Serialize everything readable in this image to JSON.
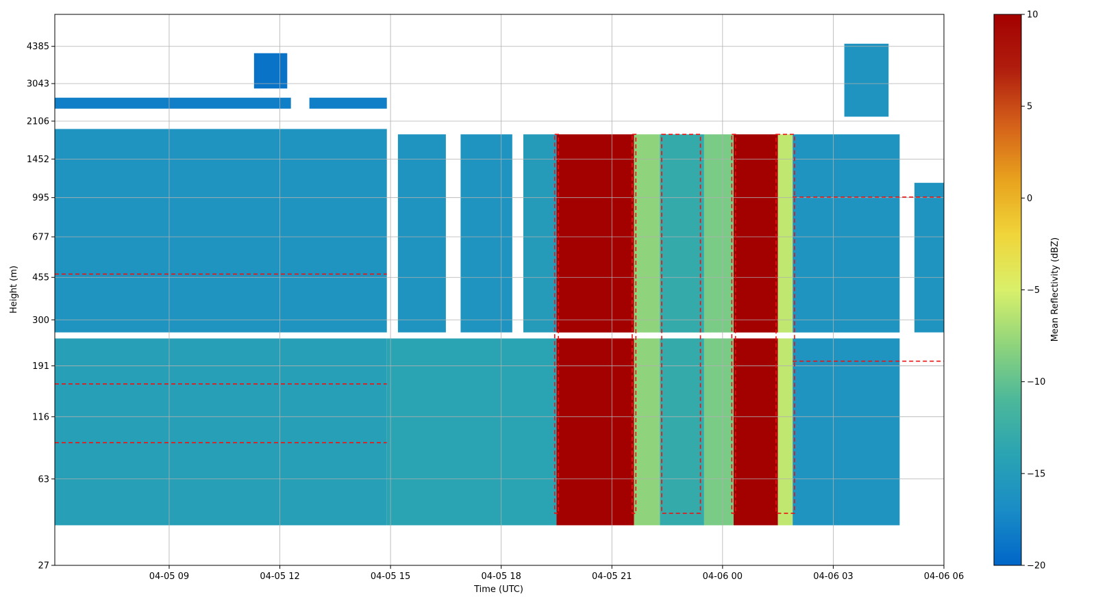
{
  "chart_data": {
    "type": "heatmap",
    "title": "",
    "xlabel": "Time (UTC)",
    "ylabel": "Height (m)",
    "x_tick_labels": [
      "04-05 09",
      "04-05 12",
      "04-05 15",
      "04-05 18",
      "04-05 21",
      "04-06 00",
      "04-06 03",
      "04-06 06"
    ],
    "x_tick_hours": [
      9,
      12,
      15,
      18,
      21,
      24,
      27,
      30
    ],
    "xlim_hours": [
      5.9,
      30
    ],
    "y_scale": "log",
    "y_tick_labels": [
      "27",
      "63",
      "116",
      "191",
      "300",
      "455",
      "677",
      "995",
      "1452",
      "2106",
      "3043",
      "4385"
    ],
    "y_tick_values": [
      27,
      63,
      116,
      191,
      300,
      455,
      677,
      995,
      1452,
      2106,
      3043,
      4385
    ],
    "ylim": [
      27,
      6000
    ],
    "colorbar": {
      "label": "Mean Reflectivity (dBZ)",
      "range": [
        -20,
        10
      ],
      "tick_labels": [
        "10",
        "5",
        "0",
        "−5",
        "−10",
        "−15",
        "−20"
      ],
      "tick_values": [
        10,
        5,
        0,
        -5,
        -10,
        -15,
        -20
      ],
      "colormap_stops": [
        "#0066c8",
        "#1a8cc6",
        "#2aa3b3",
        "#4cb89a",
        "#8fd47c",
        "#d9f06a",
        "#f0d53a",
        "#e8a21d",
        "#d4601a",
        "#b01e0e",
        "#a30000"
      ]
    },
    "grid": true,
    "contour_overlay": {
      "style": "dashed",
      "color": "#ee1111"
    },
    "gap_heights_m": [
      250,
      265
    ],
    "regions": [
      {
        "t0": 5.9,
        "t1": 14.9,
        "h0": 40,
        "h1": 250,
        "dbz": -14.5
      },
      {
        "t0": 5.9,
        "t1": 14.9,
        "h0": 265,
        "h1": 1950,
        "dbz": -16.0
      },
      {
        "t0": 5.9,
        "t1": 12.3,
        "h0": 2380,
        "h1": 2650,
        "dbz": -18.0
      },
      {
        "t0": 12.8,
        "t1": 14.9,
        "h0": 2380,
        "h1": 2650,
        "dbz": -18.0
      },
      {
        "t0": 11.3,
        "t1": 12.2,
        "h0": 2900,
        "h1": 4100,
        "dbz": -19.0
      },
      {
        "t0": 15.2,
        "t1": 16.5,
        "h0": 265,
        "h1": 1850,
        "dbz": -16.0
      },
      {
        "t0": 16.9,
        "t1": 18.3,
        "h0": 265,
        "h1": 1850,
        "dbz": -16.0
      },
      {
        "t0": 18.6,
        "t1": 19.5,
        "h0": 265,
        "h1": 1850,
        "dbz": -15.0
      },
      {
        "t0": 14.9,
        "t1": 19.5,
        "h0": 40,
        "h1": 250,
        "dbz": -14.0
      },
      {
        "t0": 19.5,
        "t1": 21.6,
        "h0": 40,
        "h1": 1850,
        "dbz": 10.0
      },
      {
        "t0": 21.6,
        "t1": 22.3,
        "h0": 40,
        "h1": 1850,
        "dbz": -8.0
      },
      {
        "t0": 22.3,
        "t1": 23.5,
        "h0": 40,
        "h1": 1850,
        "dbz": -13.0
      },
      {
        "t0": 23.5,
        "t1": 24.3,
        "h0": 40,
        "h1": 1850,
        "dbz": -9.0
      },
      {
        "t0": 24.3,
        "t1": 25.5,
        "h0": 40,
        "h1": 1850,
        "dbz": 10.0
      },
      {
        "t0": 25.5,
        "t1": 25.9,
        "h0": 40,
        "h1": 1850,
        "dbz": -6.0
      },
      {
        "t0": 25.9,
        "t1": 28.8,
        "h0": 40,
        "h1": 1850,
        "dbz": -16.0
      },
      {
        "t0": 27.3,
        "t1": 28.5,
        "h0": 2200,
        "h1": 4500,
        "dbz": -16.0
      },
      {
        "t0": 29.2,
        "t1": 30.0,
        "h0": 265,
        "h1": 1150,
        "dbz": -16.0
      }
    ]
  }
}
